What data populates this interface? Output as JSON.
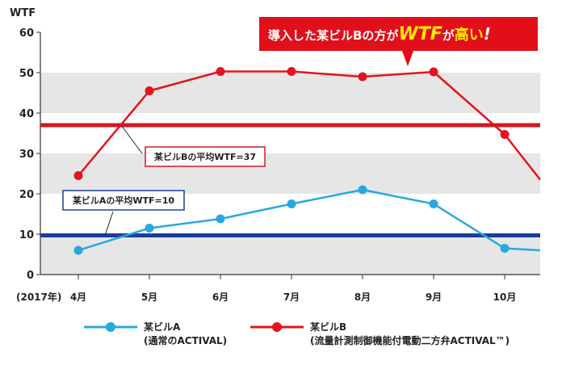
{
  "chart_data": {
    "type": "line",
    "ylabel": "WTF",
    "ylim": [
      0,
      60
    ],
    "yticks": [
      0,
      10,
      20,
      30,
      40,
      50,
      60
    ],
    "year_label": "(2017年)",
    "categories": [
      "4月",
      "5月",
      "6月",
      "7月",
      "8月",
      "9月",
      "10月"
    ],
    "grid": "alternating horizontal bands",
    "series": [
      {
        "name": "某ビルA",
        "name_sub": "(通常のACTIVAL)",
        "color": "#29a8e0",
        "values": [
          6,
          11.5,
          13.8,
          17.5,
          21,
          17.5,
          6.5
        ],
        "end_value": 6
      },
      {
        "name": "某ビルB",
        "name_sub": "(流量計測制御機能付電動二方弁ACTIVAL™)",
        "color": "#e3141e",
        "values": [
          24.5,
          45.5,
          50.3,
          50.3,
          49,
          50.2,
          34.7
        ],
        "end_value": 23.5
      }
    ],
    "reference_lines": [
      {
        "label": "某ビルBの平均WTF=37",
        "value": 37,
        "color": "#d01a22"
      },
      {
        "label": "某ビルAの平均WTF=10",
        "value": 9.7,
        "color": "#1c3f94"
      }
    ],
    "callout": {
      "text_before": "導入した某ビルBの方が",
      "text_strong": "WTF",
      "text_mid": "が",
      "text_strong2": "高い",
      "text_end": "!",
      "bg_color": "#e10f1a"
    }
  }
}
